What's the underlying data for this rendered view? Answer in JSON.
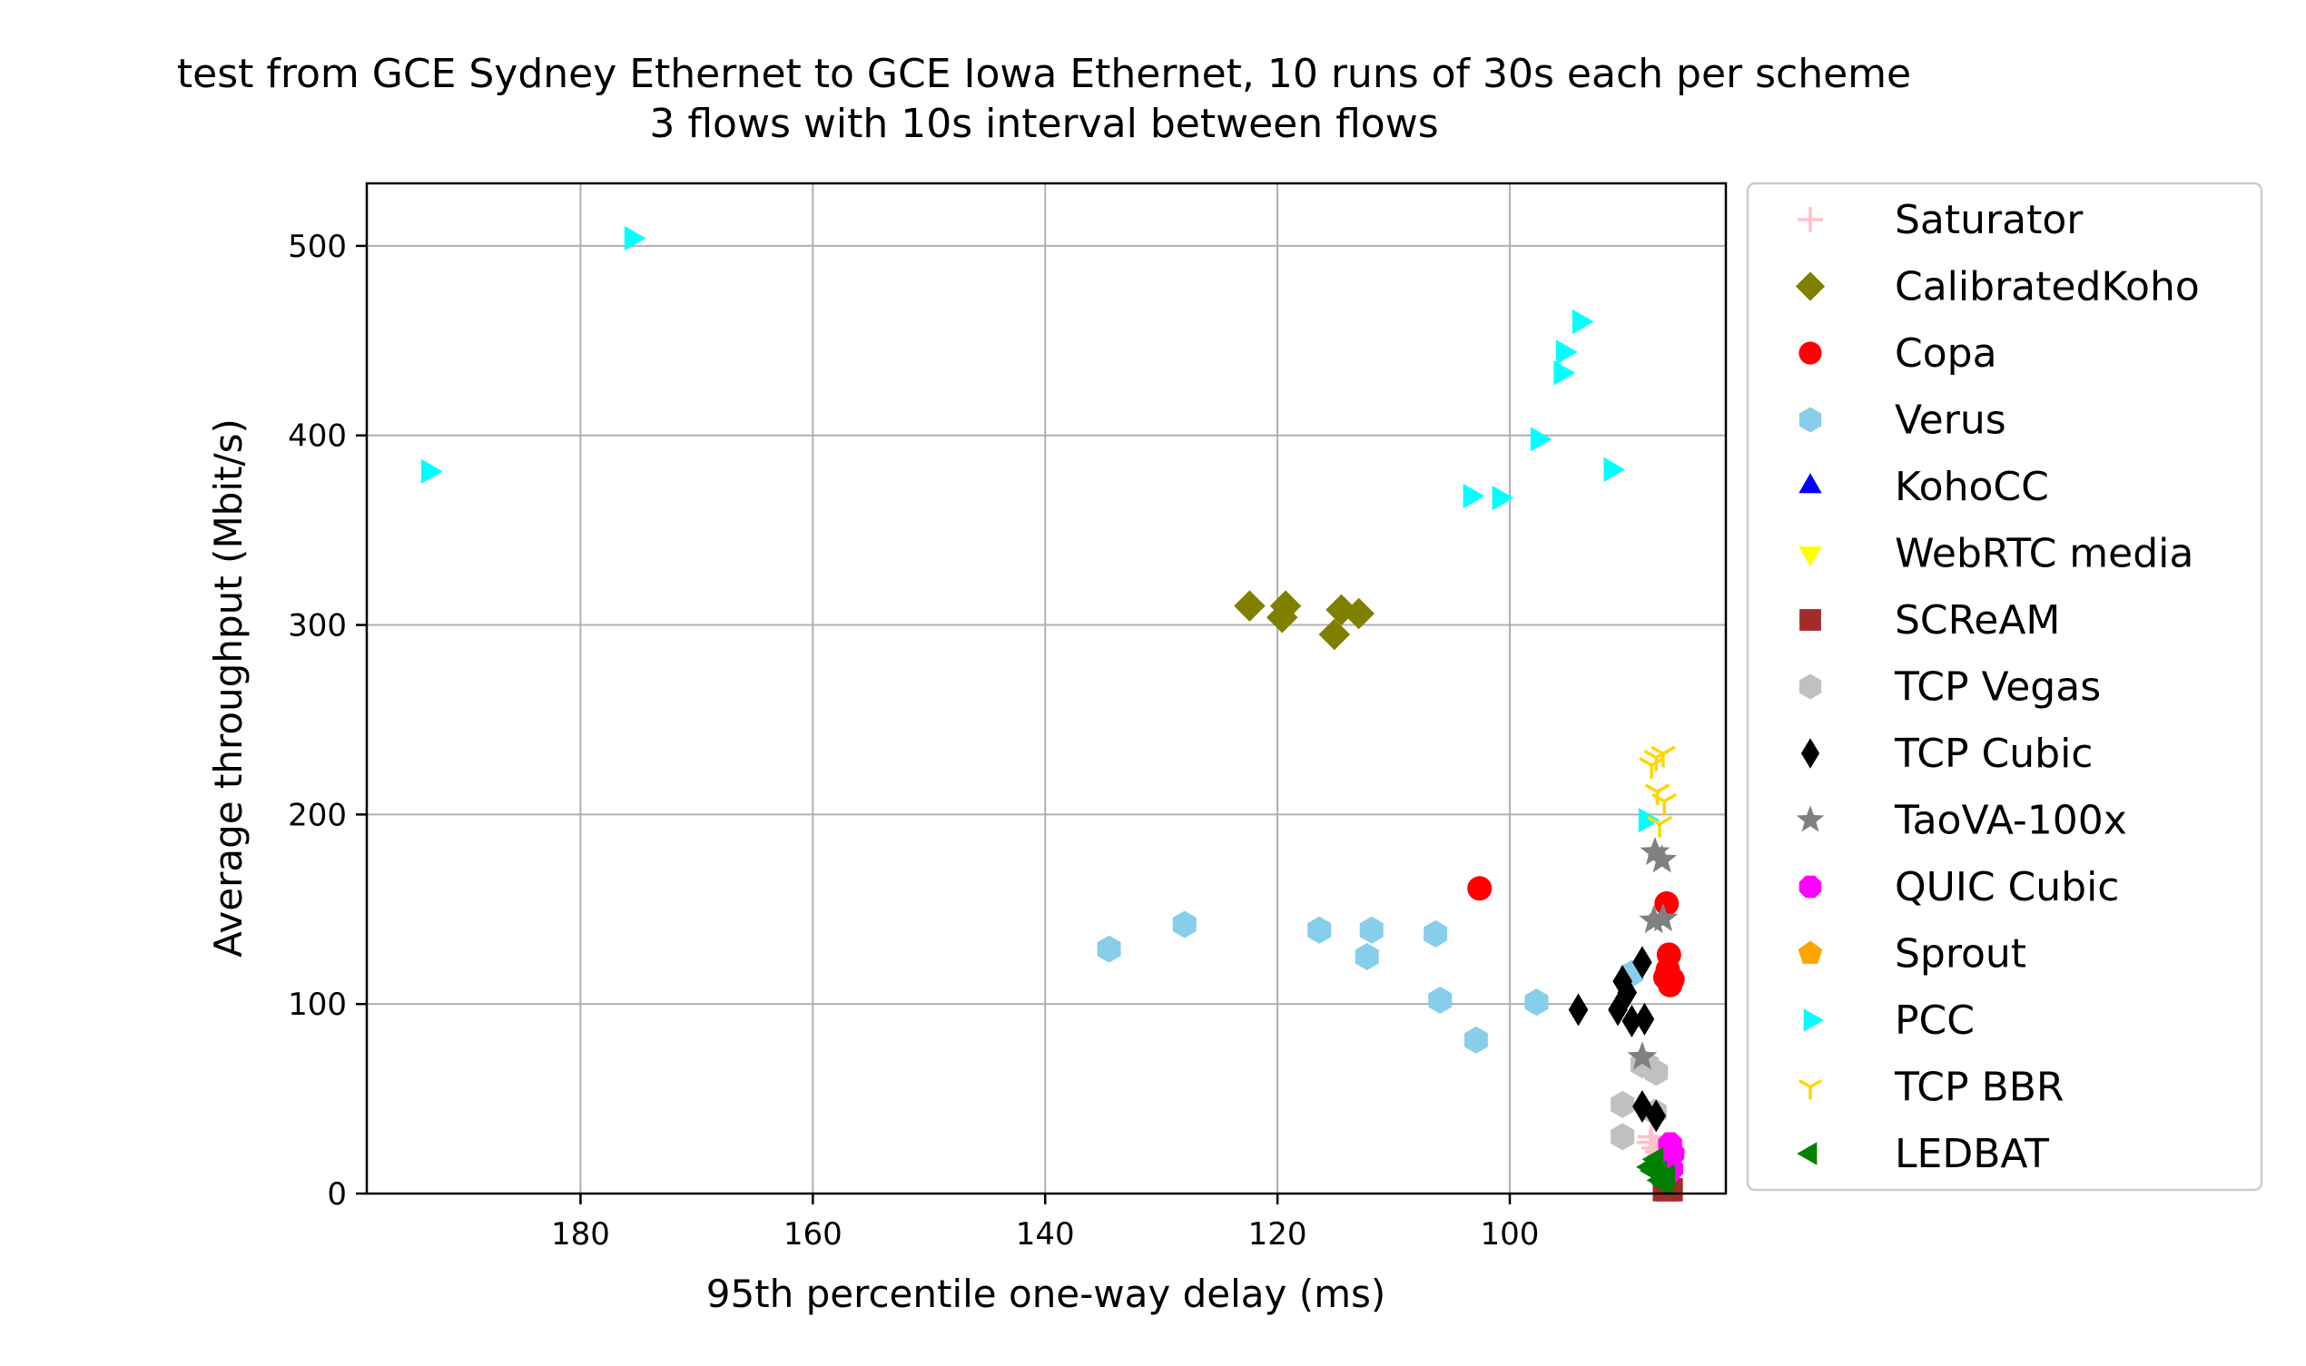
{
  "chart_data": {
    "type": "scatter",
    "title": "test from GCE Sydney Ethernet to GCE Iowa Ethernet, 10 runs of 30s each per scheme",
    "subtitle": "3 flows with 10s interval between flows",
    "xlabel": "95th percentile one-way delay (ms)",
    "ylabel": "Average throughput (Mbit/s)",
    "xlim": [
      198.4,
      81.4
    ],
    "ylim": [
      0,
      533
    ],
    "x_inverted": true,
    "grid": true,
    "legend_position": "outside-right",
    "xticks": [
      {
        "value": 180,
        "label": "180"
      },
      {
        "value": 160,
        "label": "160"
      },
      {
        "value": 140,
        "label": "140"
      },
      {
        "value": 120,
        "label": "120"
      },
      {
        "value": 100,
        "label": "100"
      }
    ],
    "yticks": [
      {
        "value": 0,
        "label": "0"
      },
      {
        "value": 100,
        "label": "100"
      },
      {
        "value": 200,
        "label": "200"
      },
      {
        "value": 300,
        "label": "300"
      },
      {
        "value": 400,
        "label": "400"
      },
      {
        "value": 500,
        "label": "500"
      }
    ],
    "series": [
      {
        "name": "Saturator",
        "marker": "plus",
        "color": "#ffc0cb",
        "points": [
          [
            87.9,
            27
          ],
          [
            87.5,
            24
          ],
          [
            87.2,
            22
          ],
          [
            87.0,
            20
          ],
          [
            86.6,
            25
          ],
          [
            86.2,
            19
          ],
          [
            87.8,
            30
          ],
          [
            86.9,
            17
          ],
          [
            86.0,
            22
          ],
          [
            87.4,
            16
          ]
        ]
      },
      {
        "name": "CalibratedKoho",
        "marker": "diamond",
        "color": "#808000",
        "points": [
          [
            122.4,
            310
          ],
          [
            119.3,
            310
          ],
          [
            119.6,
            304
          ],
          [
            114.5,
            308
          ],
          [
            113.0,
            306
          ],
          [
            115.1,
            295
          ]
        ]
      },
      {
        "name": "Copa",
        "marker": "circle",
        "color": "#ff0000",
        "points": [
          [
            102.6,
            161
          ],
          [
            86.5,
            153
          ],
          [
            86.3,
            126
          ],
          [
            86.4,
            118
          ],
          [
            86.6,
            114
          ],
          [
            86.2,
            110
          ],
          [
            86.0,
            113
          ]
        ]
      },
      {
        "name": "Verus",
        "marker": "hexagon",
        "color": "#87ceeb",
        "points": [
          [
            134.5,
            129
          ],
          [
            128.0,
            142
          ],
          [
            116.4,
            139
          ],
          [
            111.9,
            139
          ],
          [
            112.3,
            125
          ],
          [
            106.4,
            137
          ],
          [
            106.0,
            102
          ],
          [
            102.9,
            81
          ],
          [
            97.7,
            101
          ],
          [
            89.5,
            116
          ]
        ]
      },
      {
        "name": "KohoCC",
        "marker": "triangle-up",
        "color": "#0000ff",
        "points": []
      },
      {
        "name": "WebRTC media",
        "marker": "triangle-down",
        "color": "#ffff00",
        "points": []
      },
      {
        "name": "SCReAM",
        "marker": "square",
        "color": "#a52a2a",
        "points": [
          [
            86.3,
            2
          ],
          [
            86.5,
            2
          ],
          [
            86.1,
            2
          ],
          [
            86.7,
            2
          ],
          [
            86.4,
            2
          ]
        ]
      },
      {
        "name": "TCP Vegas",
        "marker": "hexagon",
        "color": "#c0c0c0",
        "points": [
          [
            90.3,
            30
          ],
          [
            90.3,
            47
          ],
          [
            88.6,
            68
          ],
          [
            87.4,
            64
          ],
          [
            87.5,
            43
          ],
          [
            88.2,
            68
          ]
        ]
      },
      {
        "name": "TCP Cubic",
        "marker": "thin-diamond",
        "color": "#000000",
        "points": [
          [
            94.1,
            97
          ],
          [
            90.3,
            112
          ],
          [
            89.9,
            106
          ],
          [
            90.7,
            97
          ],
          [
            89.5,
            91
          ],
          [
            88.4,
            92
          ],
          [
            88.6,
            122
          ],
          [
            88.6,
            46
          ],
          [
            87.4,
            41
          ]
        ]
      },
      {
        "name": "TaoVA-100x",
        "marker": "star",
        "color": "#808080",
        "points": [
          [
            87.5,
            180
          ],
          [
            86.9,
            176
          ],
          [
            87.6,
            144
          ],
          [
            86.8,
            145
          ],
          [
            88.6,
            72
          ]
        ]
      },
      {
        "name": "QUIC Cubic",
        "marker": "octagon",
        "color": "#ff00ff",
        "points": [
          [
            86.2,
            26
          ],
          [
            86.0,
            21
          ],
          [
            86.4,
            17
          ],
          [
            86.1,
            13
          ],
          [
            86.5,
            10
          ]
        ]
      },
      {
        "name": "Sprout",
        "marker": "pentagon",
        "color": "#ffa500",
        "points": []
      },
      {
        "name": "PCC",
        "marker": "triangle-right",
        "color": "#00ffff",
        "points": [
          [
            175.6,
            504
          ],
          [
            193.1,
            381
          ],
          [
            94.0,
            460
          ],
          [
            95.4,
            444
          ],
          [
            95.6,
            433
          ],
          [
            97.6,
            398
          ],
          [
            103.4,
            368
          ],
          [
            100.9,
            367
          ],
          [
            91.3,
            382
          ],
          [
            88.3,
            197
          ]
        ]
      },
      {
        "name": "TCP BBR",
        "marker": "tri-down",
        "color": "#ffd700",
        "points": [
          [
            87.4,
            230
          ],
          [
            86.8,
            232
          ],
          [
            87.8,
            226
          ],
          [
            87.3,
            212
          ],
          [
            86.7,
            207
          ],
          [
            87.1,
            195
          ]
        ]
      },
      {
        "name": "LEDBAT",
        "marker": "triangle-left",
        "color": "#008000",
        "points": [
          [
            87.4,
            18
          ],
          [
            87.9,
            14
          ],
          [
            87.1,
            11
          ],
          [
            86.4,
            9
          ],
          [
            87.0,
            7
          ],
          [
            86.6,
            5
          ],
          [
            87.6,
            12
          ]
        ]
      }
    ]
  }
}
